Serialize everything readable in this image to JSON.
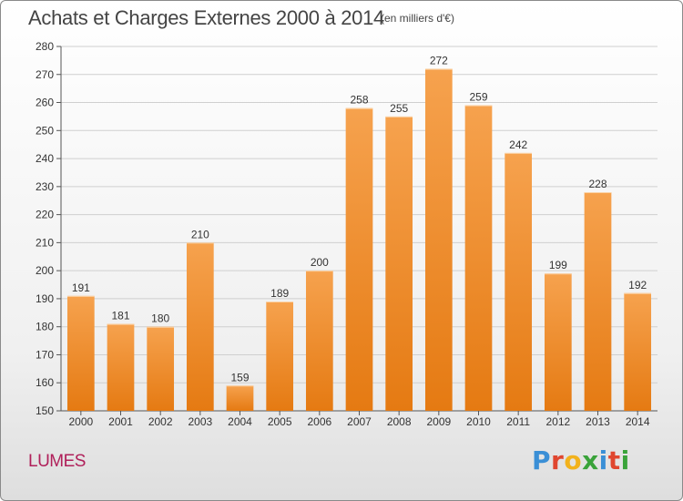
{
  "header": {
    "title": "Achats et Charges Externes 2000 à 2014",
    "subtitle": "(en milliers d'€)"
  },
  "footer": {
    "place": "LUMES",
    "logo": "Proxiti"
  },
  "colors": {
    "bar_top": "#f6a24e",
    "bar_bottom": "#e57a12",
    "grid": "#cfcfcf",
    "text": "#333333",
    "place": "#b0205a"
  },
  "chart_data": {
    "type": "bar",
    "title": "Achats et Charges Externes 2000 à 2014",
    "subtitle": "(en milliers d'€)",
    "xlabel": "",
    "ylabel": "",
    "ylim": [
      150,
      280
    ],
    "yticks": [
      150,
      160,
      170,
      180,
      190,
      200,
      210,
      220,
      230,
      240,
      250,
      260,
      270,
      280
    ],
    "grid": true,
    "categories": [
      "2000",
      "2001",
      "2002",
      "2003",
      "2004",
      "2005",
      "2006",
      "2007",
      "2008",
      "2009",
      "2010",
      "2011",
      "2012",
      "2013",
      "2014"
    ],
    "values": [
      191,
      181,
      180,
      210,
      159,
      189,
      200,
      258,
      255,
      272,
      259,
      242,
      199,
      228,
      192
    ]
  }
}
